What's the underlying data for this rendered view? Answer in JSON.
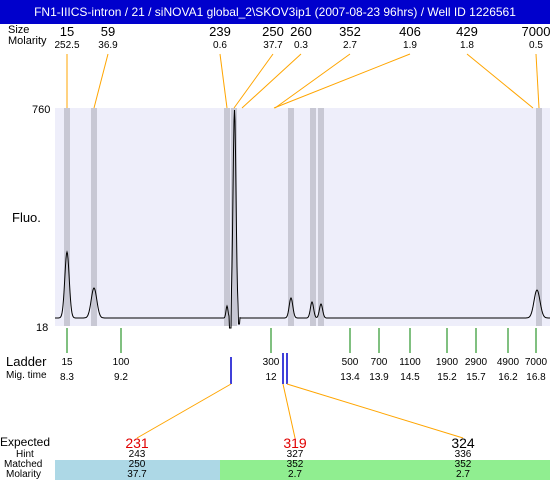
{
  "title": "FN1-IIICS-intron / 21 / siNOVA1 global_2\\SKOV3ip1 (2007-08-23 96hrs) / Well ID 1226561",
  "header": {
    "size_label": "Size",
    "molarity_label": "Molarity",
    "peaks": [
      {
        "size": "15",
        "molarity": "252.5"
      },
      {
        "size": "59",
        "molarity": "36.9"
      },
      {
        "size": "239",
        "molarity": "0.6"
      },
      {
        "size": "250",
        "molarity": "37.7"
      },
      {
        "size": "260",
        "molarity": "0.3"
      },
      {
        "size": "352",
        "molarity": "2.7"
      },
      {
        "size": "406",
        "molarity": "1.9"
      },
      {
        "size": "429",
        "molarity": "1.8"
      },
      {
        "size": "7000",
        "molarity": "0.5"
      }
    ]
  },
  "plot": {
    "y_max_label": "760",
    "y_min_label": "18",
    "y_axis_label": "Fluo.",
    "background_color": "#eeeefa",
    "band_color": "#c8c8d4"
  },
  "ladder": {
    "label": "Ladder",
    "mig_label": "Mig. time",
    "items": [
      {
        "size": "15",
        "time": "8.3"
      },
      {
        "size": "100",
        "time": "9.2"
      },
      {
        "size": "300",
        "time": "12"
      },
      {
        "size": "500",
        "time": "13.4"
      },
      {
        "size": "700",
        "time": "13.9"
      },
      {
        "size": "1100",
        "time": "14.5"
      },
      {
        "size": "1900",
        "time": "15.2"
      },
      {
        "size": "2900",
        "time": "15.7"
      },
      {
        "size": "4900",
        "time": "16.2"
      },
      {
        "size": "7000",
        "time": "16.8"
      }
    ]
  },
  "expected": {
    "expected_label": "Expected",
    "hint_label": "Hint",
    "matched_label": "Matched",
    "molarity_label": "Molarity",
    "columns": [
      {
        "expected": "231",
        "hint": "243",
        "matched": "250",
        "molarity": "37.7",
        "color": "#add8e6"
      },
      {
        "expected": "319",
        "hint": "327",
        "matched": "352",
        "molarity": "2.7",
        "color": "#90ee90"
      },
      {
        "expected": "324",
        "hint": "336",
        "matched": "352",
        "molarity": "2.7",
        "color": "#90ee90"
      }
    ]
  },
  "colors": {
    "title_bg": "#0000cc",
    "connector": "#ffa500",
    "ladder_tick": "#008000",
    "marker_blue": "#0000cc",
    "expected_red": "#e00000"
  }
}
